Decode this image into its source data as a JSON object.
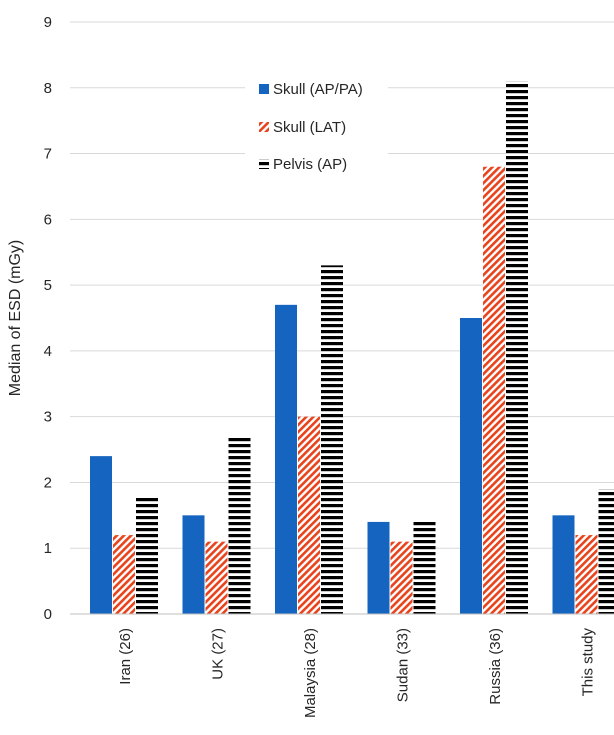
{
  "chart_data": {
    "type": "bar",
    "title": "",
    "xlabel": "",
    "ylabel": "Median of ESD (mGy)",
    "ylim": [
      0,
      9
    ],
    "yticks": [
      0,
      1,
      2,
      3,
      4,
      5,
      6,
      7,
      8,
      9
    ],
    "grid": true,
    "legend_position": "top-center",
    "categories": [
      "Iran (26)",
      "UK (27)",
      "Malaysia (28)",
      "Sudan (33)",
      "Russia (36)",
      "This study"
    ],
    "series": [
      {
        "name": "Skull (AP/PA)",
        "pattern": "solid",
        "color": "#1565c0",
        "values": [
          2.4,
          1.5,
          4.7,
          1.4,
          4.5,
          1.5
        ]
      },
      {
        "name": "Skull (LAT)",
        "pattern": "diagonal-hatch",
        "color": "#e8431c",
        "values": [
          1.2,
          1.1,
          3.0,
          1.1,
          6.8,
          1.2
        ]
      },
      {
        "name": "Pelvis (AP)",
        "pattern": "horizontal-stripes",
        "color": "#000000",
        "values": [
          1.8,
          2.7,
          5.3,
          1.4,
          8.1,
          1.9
        ]
      }
    ]
  }
}
